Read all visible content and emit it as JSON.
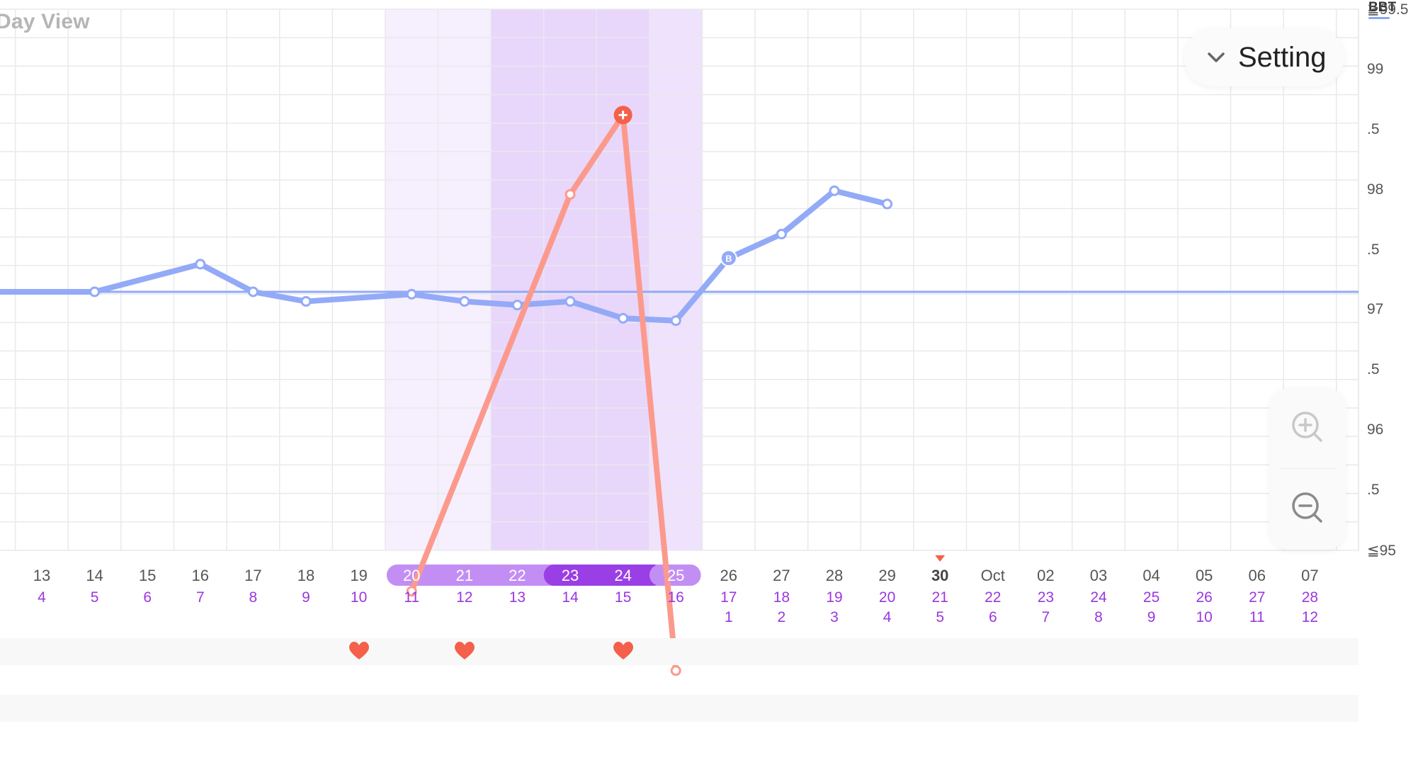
{
  "view_title": "Day View",
  "setting_button": {
    "label": "Setting",
    "icon": "chevron-down-icon"
  },
  "legend": {
    "bbt_label": "BBT",
    "bbt_color": "#8ba8f6"
  },
  "zoom": {
    "in_icon": "zoom-in-icon",
    "out_icon": "zoom-out-icon"
  },
  "colors": {
    "bbt_line": "#93aaf7",
    "lh_line": "#fb9a8c",
    "lh_peak": "#f4604a",
    "fertile_light": "#f6effd",
    "fertile_mid": "#efe2fc",
    "fertile_dark": "#e9d6fb",
    "pill_light": "#c38ef4",
    "pill_dark": "#9a3ee6",
    "cycle_day": "#9b37e0",
    "today_marker": "#f4604a",
    "heart": "#f4604a"
  },
  "y_axis_labels": [
    "≧99.5",
    "99",
    ".5",
    "98",
    ".5",
    "97",
    ".5",
    "96",
    ".5",
    "≦95"
  ],
  "dates": [
    "13",
    "14",
    "15",
    "16",
    "17",
    "18",
    "19",
    "20",
    "21",
    "22",
    "23",
    "24",
    "25",
    "26",
    "27",
    "28",
    "29",
    "30",
    "Oct",
    "02",
    "03",
    "04",
    "05",
    "06",
    "07"
  ],
  "cycle_days": [
    "4",
    "5",
    "6",
    "7",
    "8",
    "9",
    "10",
    "11",
    "12",
    "13",
    "14",
    "15",
    "16",
    "17",
    "18",
    "19",
    "20",
    "21",
    "22",
    "23",
    "24",
    "25",
    "26",
    "27",
    "28"
  ],
  "post_ovulation_days": [
    {
      "date_index": 13,
      "label": "1"
    },
    {
      "date_index": 14,
      "label": "2"
    },
    {
      "date_index": 15,
      "label": "3"
    },
    {
      "date_index": 16,
      "label": "4"
    },
    {
      "date_index": 17,
      "label": "5"
    },
    {
      "date_index": 18,
      "label": "6"
    },
    {
      "date_index": 19,
      "label": "7"
    },
    {
      "date_index": 20,
      "label": "8"
    },
    {
      "date_index": 21,
      "label": "9"
    },
    {
      "date_index": 22,
      "label": "10"
    },
    {
      "date_index": 23,
      "label": "11"
    },
    {
      "date_index": 24,
      "label": "12"
    }
  ],
  "today_index": 17,
  "fertile_window": {
    "start_index": 7,
    "end_index": 12,
    "peak_start_index": 10,
    "peak_end_index": 11
  },
  "pill_range": {
    "light": [
      7,
      9
    ],
    "dark": [
      10,
      11
    ],
    "end_index": 12
  },
  "intercourse_days": [
    6,
    8,
    11
  ],
  "chart_data": {
    "type": "line",
    "y_range": [
      95,
      99.5
    ],
    "coverline": 97.15,
    "series": [
      {
        "points": [
          {
            "i": -1.85,
            "y": 97.15
          },
          {
            "i": 1,
            "y": 97.15
          },
          {
            "i": 3,
            "y": 97.38
          },
          {
            "i": 4,
            "y": 97.15
          },
          {
            "i": 5,
            "y": 97.07
          },
          {
            "i": 7,
            "y": 97.13
          },
          {
            "i": 8,
            "y": 97.07
          },
          {
            "i": 9,
            "y": 97.04
          },
          {
            "i": 10,
            "y": 97.07
          },
          {
            "i": 11,
            "y": 96.93
          },
          {
            "i": 12,
            "y": 96.91
          },
          {
            "i": 13,
            "y": 97.43,
            "marker": "B"
          },
          {
            "i": 14,
            "y": 97.63
          },
          {
            "i": 15,
            "y": 97.99
          },
          {
            "i": 16,
            "y": 97.88
          }
        ]
      },
      {
        "points": [
          {
            "i": 7,
            "y": 94.66
          },
          {
            "i": 10,
            "y": 97.96
          },
          {
            "i": 11,
            "y": 98.62,
            "marker": "+"
          },
          {
            "i": 12,
            "y": 94.0
          }
        ]
      }
    ]
  }
}
